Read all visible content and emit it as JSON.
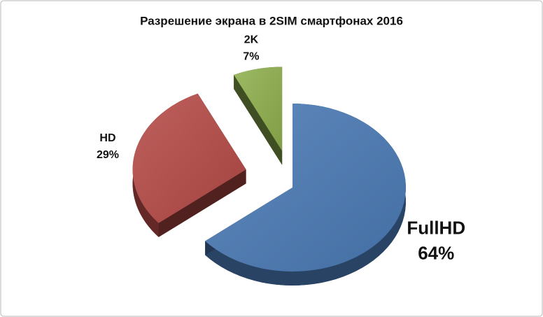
{
  "chart_data": {
    "type": "pie",
    "title": "Разрешение экрана в 2SIM смартфонах 2016",
    "categories": [
      "FullHD",
      "HD",
      "2K"
    ],
    "values": [
      64,
      29,
      7
    ],
    "value_labels": [
      "64%",
      "29%",
      "7%"
    ],
    "colors": [
      "#4a7ab5",
      "#b54a47",
      "#8fb04e"
    ]
  }
}
